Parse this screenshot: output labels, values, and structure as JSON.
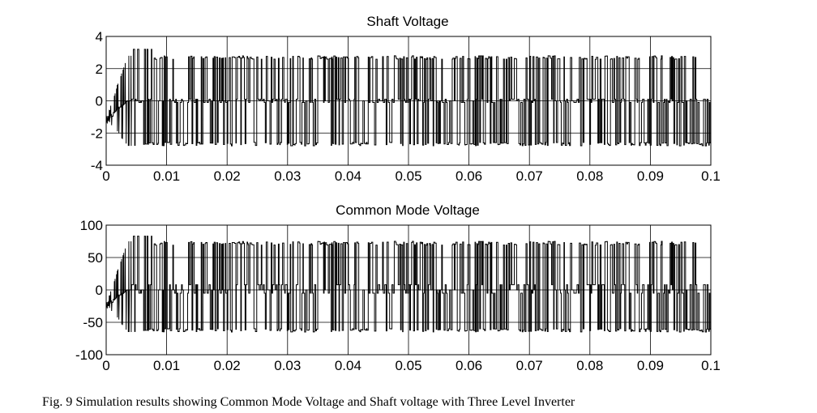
{
  "caption": "Fig. 9 Simulation results showing Common Mode Voltage and Shaft voltage with Three Level Inverter",
  "chart_data": [
    {
      "type": "line",
      "title": "Shaft Voltage",
      "xlabel": "",
      "ylabel": "",
      "xlim": [
        0,
        0.1
      ],
      "ylim": [
        -4,
        4
      ],
      "x_ticks": [
        0,
        0.01,
        0.02,
        0.03,
        0.04,
        0.05,
        0.06,
        0.07,
        0.08,
        0.09,
        0.1
      ],
      "x_tick_labels": [
        "0",
        "0.01",
        "0.02",
        "0.03",
        "0.04",
        "0.05",
        "0.06",
        "0.07",
        "0.08",
        "0.09",
        "0.1"
      ],
      "y_ticks": [
        -4,
        -2,
        0,
        2,
        4
      ],
      "y_tick_labels": [
        "-4",
        "-2",
        "0",
        "2",
        "4"
      ],
      "grid": true,
      "series": [
        {
          "name": "Shaft Voltage",
          "levels": [
            -2.8,
            -0.1,
            0,
            0.1,
            2.8
          ],
          "peak": 3.2,
          "trough": -2.8,
          "startup_dip": -1.4,
          "switching_period": 0.00025,
          "duration": 0.1
        }
      ]
    },
    {
      "type": "line",
      "title": "Common Mode Voltage",
      "xlabel": "",
      "ylabel": "",
      "xlim": [
        0,
        0.1
      ],
      "ylim": [
        -100,
        100
      ],
      "x_ticks": [
        0,
        0.01,
        0.02,
        0.03,
        0.04,
        0.05,
        0.06,
        0.07,
        0.08,
        0.09,
        0.1
      ],
      "x_tick_labels": [
        "0",
        "0.01",
        "0.02",
        "0.03",
        "0.04",
        "0.05",
        "0.06",
        "0.07",
        "0.08",
        "0.09",
        "0.1"
      ],
      "y_ticks": [
        -100,
        -50,
        0,
        50,
        100
      ],
      "y_tick_labels": [
        "-100",
        "-50",
        "0",
        "50",
        "100"
      ],
      "grid": true,
      "series": [
        {
          "name": "Common Mode Voltage",
          "levels": [
            -65,
            -5,
            0,
            8,
            75
          ],
          "peak": 83,
          "trough": -65,
          "startup_dip": -28,
          "switching_period": 0.00025,
          "duration": 0.1
        }
      ]
    }
  ]
}
